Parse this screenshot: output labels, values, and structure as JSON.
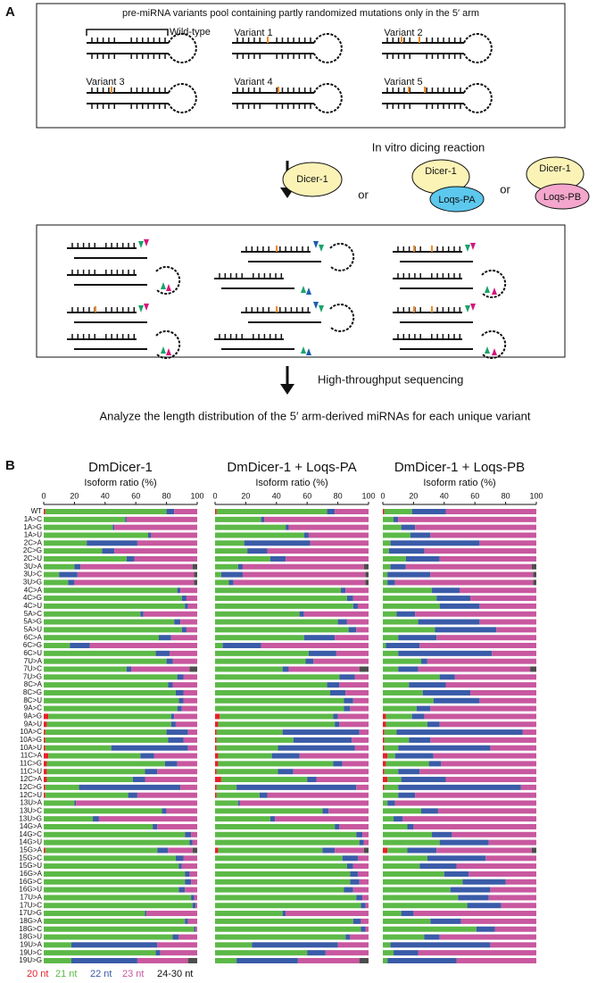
{
  "panel_a": {
    "label": "A",
    "pool_title": "pre-miRNA variants pool containing partly randomized mutations only in the 5′ arm",
    "variants": [
      "Wild-type",
      "Variant 1",
      "Variant 2",
      "Variant 3",
      "Variant 4",
      "Variant 5"
    ],
    "reaction": "In vitro dicing reaction",
    "enzymes": [
      {
        "dicer": "Dicer-1"
      },
      {
        "dicer": "Dicer-1",
        "partner": "Loqs-PA"
      },
      {
        "dicer": "Dicer-1",
        "partner": "Loqs-PB"
      }
    ],
    "or": [
      "or",
      "or"
    ],
    "sequencing": "High-throughput sequencing",
    "analysis": "Analyze the length distribution of the 5′ arm-derived miRNAs for each unique variant"
  },
  "panel_b_label": "B",
  "chart_data": [
    {
      "type": "stacked-barh",
      "title": "DmDicer-1",
      "xlabel": "Isoform ratio (%)",
      "xlim": [
        0,
        100
      ],
      "xticks": [
        0,
        20,
        40,
        60,
        80,
        100
      ],
      "categories": [
        "WT",
        "1A>C",
        "1A>G",
        "1A>U",
        "2C>A",
        "2C>G",
        "2C>U",
        "3U>A",
        "3U>C",
        "3U>G",
        "4C>A",
        "4C>G",
        "4C>U",
        "5A>C",
        "5A>G",
        "5A>U",
        "6C>A",
        "6C>G",
        "6C>U",
        "7U>A",
        "7U>C",
        "7U>G",
        "8C>A",
        "8C>G",
        "8C>U",
        "9A>C",
        "9A>G",
        "9A>U",
        "10A>C",
        "10A>G",
        "10A>U",
        "11C>A",
        "11C>G",
        "11C>U",
        "12C>A",
        "12C>G",
        "12C>U",
        "13U>A",
        "13U>C",
        "13U>G",
        "14G>A",
        "14G>C",
        "14G>U",
        "15G>A",
        "15G>C",
        "15G>U",
        "16G>A",
        "16G>C",
        "16G>U",
        "17U>A",
        "17U>C",
        "17U>G",
        "18G>A",
        "18G>C",
        "18G>U",
        "19U>A",
        "19U>C",
        "19U>G"
      ],
      "series": [
        {
          "name": "20 nt",
          "color": "#e8202a",
          "values": [
            1,
            0,
            0,
            0,
            0,
            0,
            0,
            0,
            0,
            0,
            0,
            0,
            0,
            0,
            0,
            0,
            0,
            0,
            0,
            0,
            0,
            0,
            0,
            0,
            0,
            0,
            3,
            2,
            1,
            1,
            1,
            3,
            2,
            2,
            2,
            1,
            1,
            0,
            0,
            0,
            0,
            0,
            0,
            1,
            0,
            0,
            0,
            0,
            0,
            0,
            0,
            0,
            0,
            0,
            0,
            0,
            0,
            0
          ]
        },
        {
          "name": "21 nt",
          "color": "#5cb947",
          "values": [
            79,
            53,
            45,
            68,
            28,
            38,
            54,
            20,
            10,
            16,
            87,
            90,
            92,
            63,
            85,
            90,
            75,
            17,
            73,
            80,
            54,
            87,
            81,
            86,
            88,
            87,
            80,
            81,
            79,
            80,
            43,
            60,
            77,
            64,
            56,
            22,
            54,
            20,
            77,
            32,
            71,
            92,
            95,
            73,
            86,
            88,
            92,
            92,
            88,
            96,
            97,
            66,
            92,
            98,
            84,
            18,
            73,
            18
          ]
        },
        {
          "name": "22 nt",
          "color": "#3a5ba8",
          "values": [
            5,
            1,
            1,
            2,
            33,
            8,
            5,
            4,
            12,
            4,
            2,
            3,
            2,
            2,
            4,
            3,
            8,
            13,
            9,
            4,
            3,
            4,
            3,
            5,
            3,
            3,
            2,
            3,
            14,
            10,
            50,
            9,
            8,
            8,
            8,
            66,
            6,
            1,
            3,
            4,
            3,
            4,
            2,
            7,
            5,
            2,
            3,
            4,
            4,
            2,
            2,
            1,
            2,
            1,
            4,
            56,
            3,
            43
          ]
        },
        {
          "name": "23 nt",
          "color": "#c8589f",
          "values": [
            15,
            46,
            54,
            30,
            39,
            54,
            41,
            73,
            76,
            78,
            11,
            7,
            6,
            35,
            11,
            7,
            17,
            70,
            18,
            16,
            38,
            9,
            16,
            9,
            9,
            10,
            15,
            14,
            6,
            9,
            6,
            28,
            13,
            26,
            34,
            11,
            39,
            79,
            20,
            64,
            26,
            4,
            3,
            16,
            9,
            10,
            5,
            4,
            8,
            2,
            1,
            33,
            6,
            1,
            12,
            26,
            24,
            33
          ]
        },
        {
          "name": "24-30 nt",
          "color": "#4d4d4d",
          "values": [
            0,
            0,
            0,
            0,
            0,
            0,
            0,
            3,
            2,
            2,
            0,
            0,
            0,
            0,
            0,
            0,
            0,
            0,
            0,
            0,
            5,
            0,
            0,
            0,
            0,
            0,
            0,
            0,
            0,
            0,
            0,
            0,
            0,
            0,
            0,
            0,
            0,
            0,
            0,
            0,
            0,
            0,
            0,
            3,
            0,
            0,
            0,
            0,
            0,
            0,
            0,
            0,
            0,
            0,
            0,
            0,
            0,
            6
          ]
        }
      ]
    },
    {
      "type": "stacked-barh",
      "title": "DmDicer-1 + Loqs-PA",
      "xlabel": "Isoform ratio (%)",
      "xlim": [
        0,
        100
      ],
      "xticks": [
        0,
        20,
        40,
        60,
        80,
        100
      ],
      "series": [
        {
          "color": "#e8202a",
          "values": [
            1,
            0,
            0,
            0,
            0,
            0,
            0,
            0,
            0,
            0,
            0,
            0,
            0,
            0,
            0,
            0,
            0,
            0,
            0,
            0,
            0,
            0,
            0,
            0,
            0,
            0,
            3,
            2,
            1,
            1,
            1,
            2,
            2,
            1,
            4,
            1,
            1,
            0,
            0,
            0,
            0,
            0,
            0,
            2,
            0,
            0,
            0,
            0,
            0,
            0,
            0,
            0,
            0,
            0,
            0,
            0,
            0,
            0
          ]
        },
        {
          "color": "#5cb947",
          "values": [
            72,
            30,
            46,
            58,
            19,
            21,
            36,
            15,
            4,
            9,
            82,
            86,
            90,
            55,
            80,
            87,
            58,
            5,
            61,
            59,
            44,
            81,
            73,
            75,
            84,
            84,
            74,
            76,
            43,
            50,
            40,
            35,
            75,
            40,
            56,
            13,
            28,
            15,
            70,
            36,
            78,
            92,
            94,
            68,
            83,
            86,
            88,
            88,
            84,
            92,
            95,
            44,
            90,
            95,
            85,
            24,
            60,
            14
          ]
        },
        {
          "color": "#3a5ba8",
          "values": [
            5,
            2,
            2,
            3,
            43,
            13,
            10,
            3,
            14,
            3,
            3,
            4,
            3,
            3,
            6,
            5,
            20,
            25,
            18,
            5,
            4,
            10,
            8,
            10,
            6,
            4,
            3,
            3,
            50,
            38,
            50,
            18,
            6,
            10,
            6,
            78,
            5,
            1,
            4,
            3,
            3,
            4,
            3,
            8,
            10,
            4,
            5,
            6,
            6,
            4,
            3,
            2,
            5,
            3,
            3,
            56,
            12,
            40
          ]
        },
        {
          "color": "#c8589f",
          "values": [
            22,
            68,
            52,
            39,
            38,
            66,
            54,
            79,
            80,
            86,
            15,
            10,
            7,
            42,
            14,
            8,
            22,
            70,
            21,
            36,
            46,
            9,
            19,
            15,
            10,
            12,
            20,
            19,
            6,
            11,
            9,
            45,
            17,
            49,
            34,
            8,
            66,
            84,
            26,
            61,
            19,
            4,
            3,
            19,
            7,
            10,
            7,
            6,
            10,
            4,
            2,
            54,
            5,
            2,
            12,
            20,
            28,
            40
          ]
        },
        {
          "color": "#4d4d4d",
          "values": [
            0,
            0,
            0,
            0,
            0,
            0,
            0,
            3,
            2,
            2,
            0,
            0,
            0,
            0,
            0,
            0,
            0,
            0,
            0,
            0,
            6,
            0,
            0,
            0,
            0,
            0,
            0,
            0,
            0,
            0,
            0,
            0,
            0,
            0,
            0,
            0,
            0,
            0,
            0,
            0,
            0,
            0,
            0,
            3,
            0,
            0,
            0,
            0,
            0,
            0,
            0,
            0,
            0,
            0,
            0,
            0,
            0,
            6
          ]
        }
      ]
    },
    {
      "type": "stacked-barh",
      "title": "DmDicer-1 + Loqs-PB",
      "xlabel": "Isoform ratio (%)",
      "xlim": [
        0,
        100
      ],
      "xticks": [
        0,
        20,
        40,
        60,
        80,
        100
      ],
      "series": [
        {
          "color": "#e8202a",
          "values": [
            1,
            0,
            0,
            0,
            0,
            0,
            0,
            0,
            0,
            0,
            0,
            0,
            0,
            0,
            0,
            0,
            0,
            0,
            0,
            0,
            0,
            0,
            0,
            0,
            0,
            0,
            2,
            2,
            1,
            1,
            1,
            3,
            2,
            1,
            3,
            1,
            0,
            0,
            0,
            0,
            0,
            0,
            0,
            3,
            0,
            0,
            0,
            0,
            0,
            0,
            0,
            0,
            0,
            0,
            0,
            0,
            0,
            0
          ]
        },
        {
          "color": "#5cb947",
          "values": [
            18,
            7,
            12,
            18,
            5,
            4,
            15,
            5,
            3,
            3,
            32,
            35,
            37,
            9,
            23,
            34,
            10,
            2,
            10,
            25,
            10,
            37,
            17,
            26,
            33,
            22,
            17,
            27,
            8,
            16,
            9,
            5,
            28,
            9,
            9,
            9,
            10,
            3,
            25,
            7,
            16,
            32,
            37,
            13,
            29,
            24,
            40,
            52,
            44,
            49,
            55,
            12,
            31,
            61,
            27,
            5,
            7,
            3
          ]
        },
        {
          "color": "#3a5ba8",
          "values": [
            22,
            3,
            9,
            13,
            58,
            23,
            22,
            10,
            28,
            5,
            18,
            22,
            26,
            12,
            40,
            40,
            25,
            22,
            61,
            4,
            13,
            10,
            24,
            31,
            30,
            9,
            8,
            8,
            82,
            14,
            60,
            25,
            8,
            14,
            29,
            80,
            11,
            5,
            11,
            6,
            4,
            13,
            32,
            19,
            38,
            24,
            16,
            28,
            26,
            20,
            22,
            8,
            20,
            12,
            10,
            65,
            16,
            45
          ]
        },
        {
          "color": "#c8589f",
          "values": [
            59,
            90,
            79,
            69,
            37,
            73,
            63,
            82,
            67,
            90,
            50,
            43,
            37,
            79,
            37,
            26,
            65,
            76,
            29,
            71,
            73,
            53,
            59,
            43,
            37,
            69,
            73,
            63,
            9,
            69,
            30,
            67,
            62,
            76,
            59,
            10,
            79,
            92,
            64,
            87,
            80,
            55,
            31,
            62,
            33,
            52,
            44,
            20,
            30,
            31,
            23,
            80,
            49,
            27,
            63,
            30,
            77,
            52
          ]
        },
        {
          "color": "#4d4d4d",
          "values": [
            0,
            0,
            0,
            0,
            0,
            0,
            0,
            3,
            2,
            2,
            0,
            0,
            0,
            0,
            0,
            0,
            0,
            0,
            0,
            0,
            4,
            0,
            0,
            0,
            0,
            0,
            0,
            0,
            0,
            0,
            0,
            0,
            0,
            0,
            0,
            0,
            0,
            0,
            0,
            0,
            0,
            0,
            0,
            3,
            0,
            0,
            0,
            0,
            0,
            0,
            0,
            0,
            0,
            0,
            0,
            0,
            0,
            0
          ]
        }
      ]
    }
  ]
}
